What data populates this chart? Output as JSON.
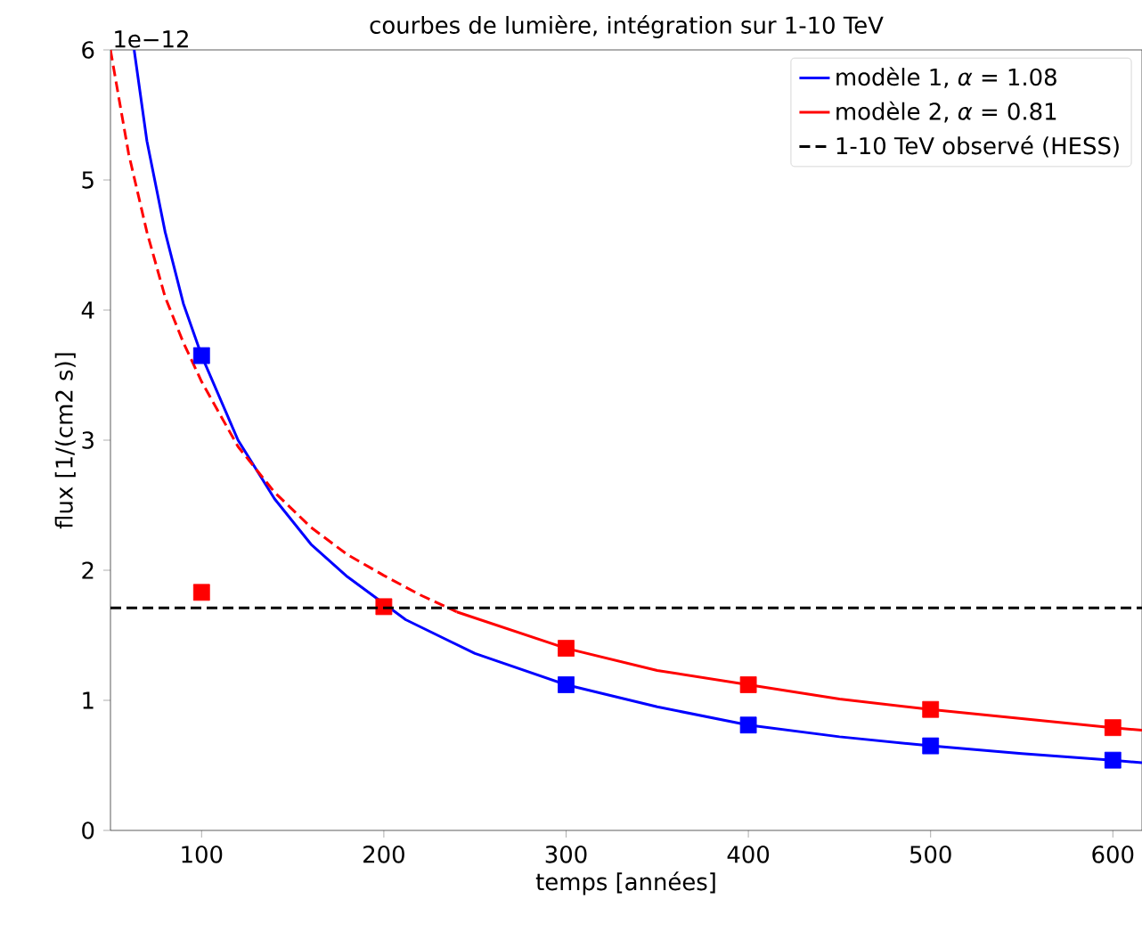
{
  "chart_data": {
    "type": "line",
    "title": "courbes de lumière, intégration sur 1-10 TeV",
    "xlabel": "temps [années]",
    "ylabel": "flux [1/(cm2 s)]",
    "annotations": [
      "1e−12"
    ],
    "xlim": [
      50,
      616
    ],
    "xticks": [
      100,
      200,
      300,
      400,
      500,
      600
    ],
    "ylim": [
      0,
      6
    ],
    "yticks": [
      0,
      1,
      2,
      3,
      4,
      5,
      6
    ],
    "legend": "top right",
    "series": [
      {
        "name": "modèle 1, *α* = 1.08",
        "color": "#0000ff",
        "line_style": "solid",
        "x": [
          63,
          70,
          80,
          90,
          100,
          120,
          140,
          160,
          180,
          212,
          250,
          300,
          350,
          400,
          450,
          500,
          550,
          600,
          616
        ],
        "values": [
          6.0,
          5.3,
          4.6,
          4.05,
          3.65,
          3.0,
          2.55,
          2.2,
          1.95,
          1.62,
          1.36,
          1.12,
          0.95,
          0.81,
          0.72,
          0.65,
          0.59,
          0.54,
          0.52
        ]
      },
      {
        "name": "modèle 2, *α* = 0.81",
        "color": "#ff0000",
        "line_style": "solid",
        "x": [
          240,
          300,
          350,
          400,
          450,
          500,
          550,
          600,
          616
        ],
        "values": [
          1.68,
          1.4,
          1.23,
          1.12,
          1.01,
          0.93,
          0.86,
          0.79,
          0.77
        ]
      },
      {
        "color": "#ff0000",
        "line_style": "dashed",
        "x": [
          50,
          60,
          70,
          80,
          90,
          100,
          120,
          140,
          160,
          180,
          200,
          220,
          240
        ],
        "values": [
          6.0,
          5.2,
          4.6,
          4.1,
          3.75,
          3.45,
          2.95,
          2.6,
          2.33,
          2.12,
          1.96,
          1.81,
          1.68
        ]
      },
      {
        "type": "scatter",
        "marker": "square",
        "color": "#0000ff",
        "x": [
          100,
          300,
          400,
          500,
          600
        ],
        "values": [
          3.65,
          1.12,
          0.81,
          0.65,
          0.54
        ]
      },
      {
        "type": "scatter",
        "marker": "square",
        "color": "#ff0000",
        "x": [
          100,
          200,
          300,
          400,
          500,
          600
        ],
        "values": [
          1.83,
          1.72,
          1.4,
          1.12,
          0.93,
          0.79
        ]
      }
    ],
    "ref_lines": [
      {
        "axis": "y",
        "value": 1.71,
        "label": "1-10 TeV observé (HESS)",
        "color": "#000000",
        "line_style": "dashed"
      }
    ]
  }
}
